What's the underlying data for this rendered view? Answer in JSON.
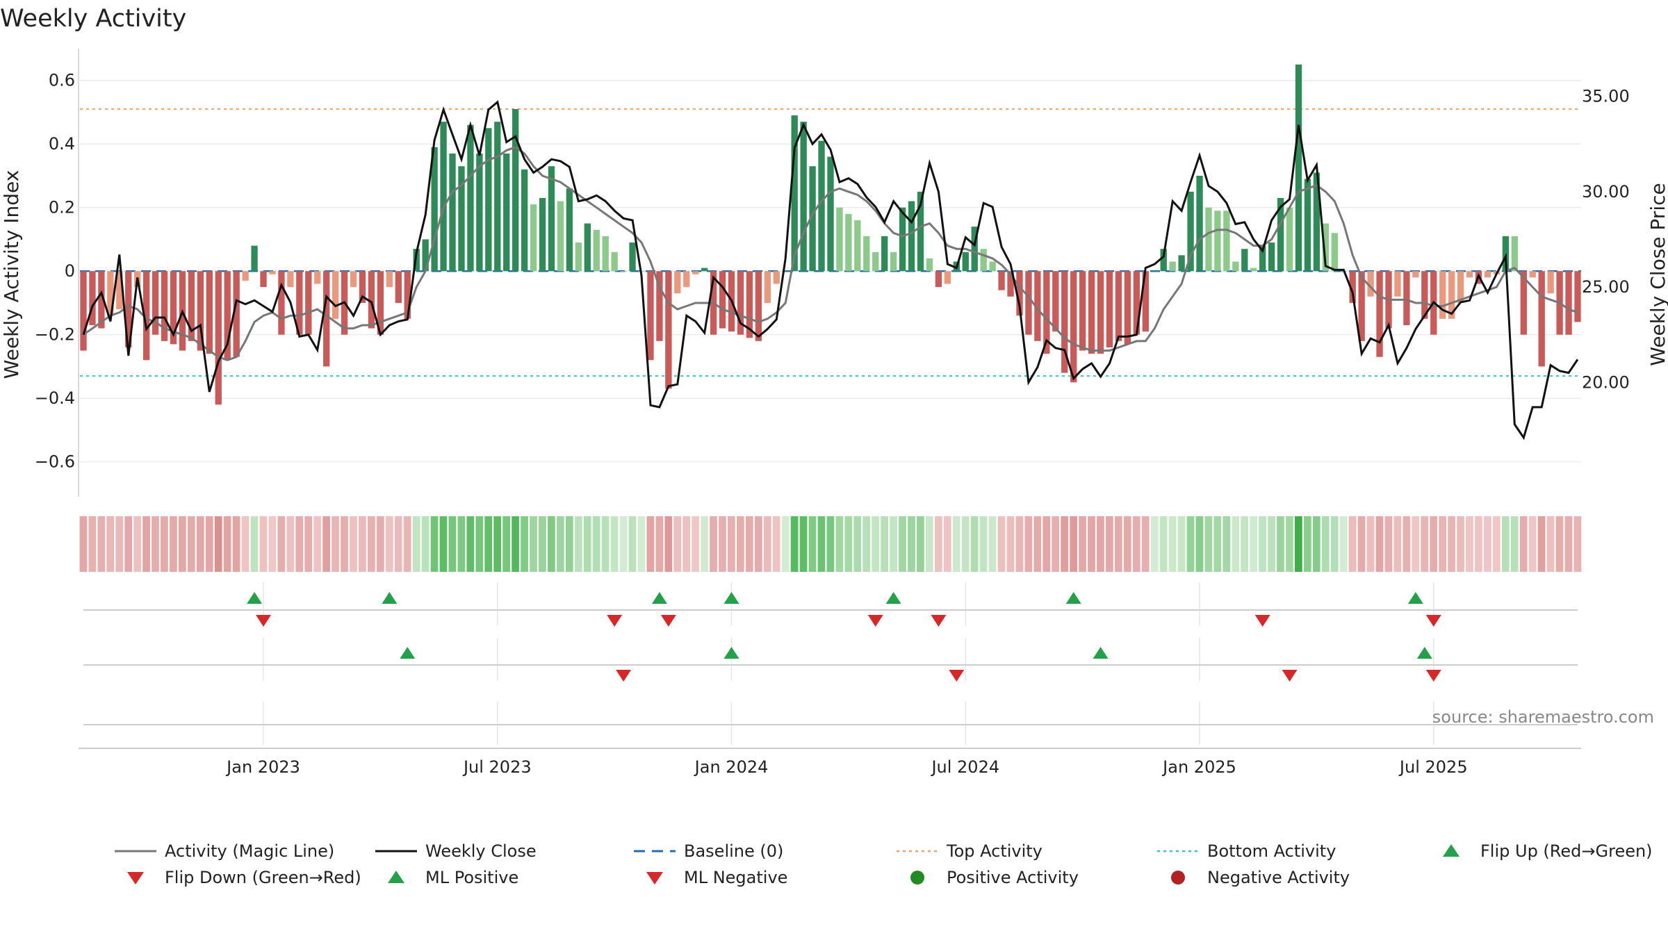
{
  "title": "Weekly Activity",
  "source": "source: sharemaestro.com",
  "colors": {
    "green_dark": "#2e8b57",
    "green_light": "#8cc98a",
    "red_dark": "#c85a5a",
    "red_light": "#e99a7e",
    "magic": "#777777",
    "close": "#111111",
    "baseline": "#1f6fb4",
    "top": "#f0a060",
    "bottom": "#28c8d8",
    "marker_up": "#22a04a",
    "marker_down": "#d62828"
  },
  "chart_data": {
    "type": "bar",
    "title": "Weekly Activity",
    "ylabel_left": "Weekly Activity Index",
    "ylabel_right": "Weekly Close Price",
    "x_ticks": [
      "Jan 2023",
      "Jul 2023",
      "Jan 2024",
      "Jul 2024",
      "Jan 2025",
      "Jul 2025"
    ],
    "x_tick_week_index": [
      20,
      46,
      72,
      98,
      124,
      150
    ],
    "y_left_ticks": [
      0.6,
      0.4,
      0.2,
      0,
      -0.2,
      -0.4,
      -0.6
    ],
    "y_left_tick_labels": [
      "0.6",
      "0.4",
      "0.2",
      "0",
      "−0.2",
      "−0.4",
      "−0.6"
    ],
    "y_left_range": [
      -0.71,
      0.7
    ],
    "y_right_ticks": [
      35,
      30,
      25,
      20
    ],
    "y_right_tick_labels": [
      "35.00",
      "30.00",
      "25.00",
      "20.00"
    ],
    "y_right_range": [
      14.0,
      37.5
    ],
    "top_activity": 0.51,
    "bottom_activity": -0.33,
    "baseline": 0,
    "activity": [
      -0.25,
      -0.17,
      -0.18,
      -0.14,
      -0.12,
      -0.24,
      -0.05,
      -0.28,
      -0.2,
      -0.22,
      -0.23,
      -0.25,
      -0.22,
      -0.25,
      -0.26,
      -0.42,
      -0.28,
      -0.27,
      -0.03,
      0.08,
      -0.05,
      -0.01,
      -0.2,
      -0.05,
      -0.2,
      -0.2,
      -0.04,
      -0.3,
      -0.15,
      -0.2,
      -0.05,
      -0.1,
      -0.18,
      -0.2,
      -0.05,
      -0.1,
      -0.15,
      0.07,
      0.1,
      0.39,
      0.47,
      0.37,
      0.33,
      0.46,
      0.37,
      0.45,
      0.47,
      0.37,
      0.51,
      0.32,
      0.21,
      0.23,
      0.33,
      0.22,
      0.26,
      0.09,
      0.15,
      0.13,
      0.11,
      0.06,
      0.0,
      0.09,
      0.0,
      -0.28,
      -0.22,
      -0.37,
      -0.07,
      -0.05,
      -0.01,
      0.01,
      -0.2,
      -0.18,
      -0.19,
      -0.2,
      -0.21,
      -0.22,
      -0.1,
      -0.04,
      0.0,
      0.49,
      0.47,
      0.33,
      0.41,
      0.36,
      0.2,
      0.18,
      0.16,
      0.11,
      0.06,
      0.11,
      0.06,
      0.2,
      0.22,
      0.25,
      0.04,
      -0.05,
      -0.04,
      0.03,
      0.06,
      0.14,
      0.07,
      0.03,
      -0.06,
      -0.08,
      -0.14,
      -0.2,
      -0.22,
      -0.26,
      -0.19,
      -0.32,
      -0.35,
      -0.25,
      -0.26,
      -0.26,
      -0.24,
      -0.22,
      -0.23,
      -0.2,
      -0.19,
      0.0,
      0.07,
      0.03,
      0.05,
      0.25,
      0.3,
      0.2,
      0.19,
      0.19,
      0.03,
      0.07,
      0.01,
      0.08,
      0.09,
      0.23,
      0.2,
      0.65,
      0.29,
      0.31,
      0.15,
      0.12,
      0.0,
      -0.1,
      -0.22,
      -0.08,
      -0.27,
      -0.18,
      -0.08,
      -0.17,
      -0.02,
      -0.15,
      -0.2,
      -0.15,
      -0.15,
      -0.1,
      -0.02,
      -0.04,
      -0.02,
      -0.01,
      0.11,
      0.11,
      -0.2,
      -0.02,
      -0.3,
      -0.07,
      -0.2,
      -0.2,
      -0.16
    ],
    "magic_line": [
      -0.2,
      -0.18,
      -0.16,
      -0.14,
      -0.13,
      -0.11,
      -0.12,
      -0.15,
      -0.16,
      -0.18,
      -0.19,
      -0.2,
      -0.21,
      -0.23,
      -0.25,
      -0.27,
      -0.28,
      -0.27,
      -0.22,
      -0.16,
      -0.14,
      -0.13,
      -0.15,
      -0.14,
      -0.14,
      -0.13,
      -0.12,
      -0.14,
      -0.16,
      -0.18,
      -0.18,
      -0.17,
      -0.17,
      -0.16,
      -0.15,
      -0.14,
      -0.13,
      -0.05,
      0.0,
      0.1,
      0.2,
      0.25,
      0.27,
      0.3,
      0.33,
      0.35,
      0.36,
      0.38,
      0.39,
      0.37,
      0.33,
      0.3,
      0.29,
      0.28,
      0.26,
      0.24,
      0.22,
      0.2,
      0.18,
      0.16,
      0.14,
      0.12,
      0.09,
      0.03,
      -0.05,
      -0.1,
      -0.12,
      -0.11,
      -0.1,
      -0.1,
      -0.1,
      -0.12,
      -0.13,
      -0.14,
      -0.15,
      -0.16,
      -0.15,
      -0.13,
      -0.1,
      0.05,
      0.12,
      0.18,
      0.22,
      0.25,
      0.26,
      0.25,
      0.24,
      0.22,
      0.19,
      0.15,
      0.12,
      0.11,
      0.12,
      0.14,
      0.15,
      0.12,
      0.08,
      0.07,
      0.07,
      0.06,
      0.05,
      0.04,
      0.02,
      -0.01,
      -0.05,
      -0.08,
      -0.12,
      -0.15,
      -0.18,
      -0.21,
      -0.23,
      -0.24,
      -0.25,
      -0.25,
      -0.25,
      -0.24,
      -0.23,
      -0.22,
      -0.22,
      -0.18,
      -0.12,
      -0.08,
      -0.04,
      0.05,
      0.1,
      0.12,
      0.13,
      0.13,
      0.12,
      0.1,
      0.08,
      0.08,
      0.1,
      0.15,
      0.2,
      0.25,
      0.26,
      0.27,
      0.25,
      0.22,
      0.15,
      0.05,
      -0.02,
      -0.05,
      -0.08,
      -0.09,
      -0.09,
      -0.09,
      -0.1,
      -0.1,
      -0.11,
      -0.11,
      -0.1,
      -0.09,
      -0.08,
      -0.07,
      -0.06,
      -0.05,
      0.0,
      0.01,
      -0.02,
      -0.05,
      -0.08,
      -0.09,
      -0.1,
      -0.12,
      -0.13
    ],
    "weekly_close": [
      22.5,
      24.0,
      24.7,
      23.2,
      26.7,
      21.4,
      25.5,
      22.8,
      23.4,
      23.4,
      22.5,
      23.7,
      22.7,
      23.0,
      19.5,
      21.1,
      22.0,
      24.3,
      24.1,
      24.3,
      24.0,
      23.7,
      25.1,
      24.2,
      22.4,
      22.5,
      21.7,
      24.5,
      24.0,
      24.2,
      23.5,
      24.5,
      24.2,
      22.5,
      23.0,
      23.2,
      23.3,
      26.8,
      28.8,
      32.7,
      34.3,
      33.0,
      31.7,
      33.5,
      31.9,
      34.3,
      34.7,
      32.6,
      32.9,
      31.7,
      31.0,
      31.3,
      31.7,
      31.6,
      31.3,
      29.5,
      29.6,
      29.8,
      29.5,
      29.0,
      28.6,
      28.5,
      25.6,
      18.8,
      18.7,
      19.8,
      19.9,
      23.5,
      23.2,
      22.6,
      25.5,
      25.0,
      24.3,
      23.1,
      22.8,
      22.4,
      22.8,
      23.3,
      26.5,
      32.3,
      33.5,
      32.5,
      33.0,
      32.2,
      30.5,
      30.7,
      30.4,
      29.7,
      29.2,
      28.4,
      29.5,
      28.9,
      28.4,
      29.3,
      31.5,
      30.0,
      26.2,
      26.0,
      27.6,
      27.2,
      29.4,
      29.2,
      27.1,
      26.2,
      24.0,
      20.0,
      20.8,
      22.2,
      21.8,
      21.7,
      20.2,
      20.7,
      21.0,
      20.3,
      21.0,
      22.4,
      22.4,
      22.5,
      26.0,
      26.2,
      26.6,
      29.5,
      29.0,
      30.5,
      31.9,
      30.3,
      30.0,
      29.4,
      28.3,
      28.4,
      27.5,
      26.9,
      28.5,
      29.2,
      29.6,
      33.5,
      30.6,
      31.4,
      26.1,
      25.9,
      25.9,
      24.7,
      21.5,
      22.3,
      22.1,
      23.0,
      21.0,
      21.8,
      22.8,
      23.5,
      24.2,
      23.8,
      23.6,
      24.2,
      24.3,
      25.6,
      24.7,
      25.7,
      26.6,
      17.8,
      17.1,
      18.7,
      18.7,
      20.9,
      20.6,
      20.5,
      21.2
    ],
    "strip_series": "activity",
    "flip_up_weeks": [
      19,
      34,
      64,
      72,
      90,
      110,
      148
    ],
    "flip_down_weeks": [
      20,
      59,
      65,
      88,
      95,
      131,
      150
    ],
    "ml_positive_weeks": [
      36,
      72,
      113,
      149
    ],
    "ml_negative_weeks": [
      60,
      97,
      134,
      150
    ],
    "legend": [
      {
        "label": "Activity (Magic Line)",
        "kind": "line-solid-gray"
      },
      {
        "label": "Weekly Close",
        "kind": "line-solid-black"
      },
      {
        "label": "Baseline (0)",
        "kind": "line-dash-blue"
      },
      {
        "label": "Top Activity",
        "kind": "line-dot-orange"
      },
      {
        "label": "Bottom Activity",
        "kind": "line-dot-cyan"
      },
      {
        "label": "Flip Up (Red→Green)",
        "kind": "tri-up"
      },
      {
        "label": "Flip Down (Green→Red)",
        "kind": "tri-down"
      },
      {
        "label": "ML Positive",
        "kind": "tri-up"
      },
      {
        "label": "ML Negative",
        "kind": "tri-down"
      },
      {
        "label": "Positive Activity",
        "kind": "dot-green"
      },
      {
        "label": "Negative Activity",
        "kind": "dot-red"
      }
    ]
  }
}
